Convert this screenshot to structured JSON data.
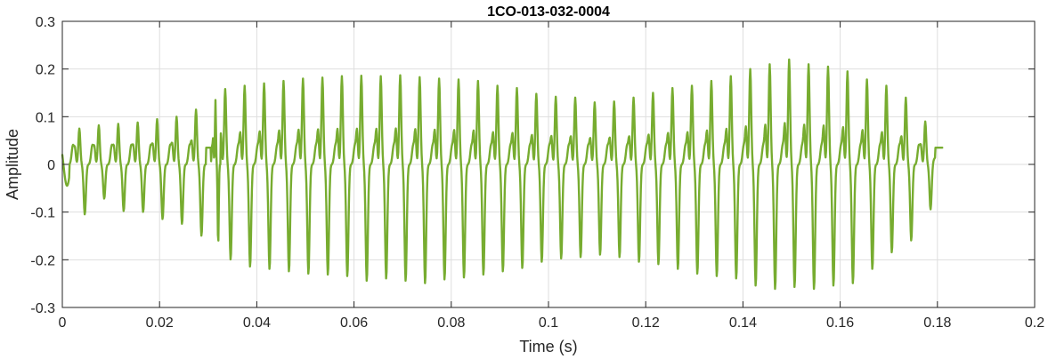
{
  "chart_data": {
    "type": "line",
    "title": "1CO-013-032-0004",
    "xlabel": "Time (s)",
    "ylabel": "Amplitude",
    "xlim": [
      0,
      0.2
    ],
    "ylim": [
      -0.3,
      0.3
    ],
    "grid": true,
    "x_ticks": [
      "0",
      "0.02",
      "0.04",
      "0.06",
      "0.08",
      "0.1",
      "0.12",
      "0.14",
      "0.16",
      "0.18",
      "0.2"
    ],
    "y_ticks": [
      "0.3",
      "0.2",
      "0.1",
      "0",
      "-0.1",
      "-0.2",
      "-0.3"
    ],
    "series": [
      {
        "color": "#77ac30",
        "x_range": [
          0,
          0.181
        ],
        "peaks": [
          [
            0.0035,
            0.075,
            -0.105
          ],
          [
            0.0075,
            0.082,
            -0.072
          ],
          [
            0.0115,
            0.085,
            -0.098
          ],
          [
            0.0155,
            0.088,
            -0.1
          ],
          [
            0.0195,
            0.095,
            -0.115
          ],
          [
            0.0235,
            0.1,
            -0.125
          ],
          [
            0.0275,
            0.115,
            -0.15
          ],
          [
            0.0315,
            0.135,
            -0.17
          ],
          [
            0.0335,
            0.158,
            -0.2
          ],
          [
            0.0375,
            0.165,
            -0.215
          ],
          [
            0.0415,
            0.17,
            -0.22
          ],
          [
            0.0455,
            0.175,
            -0.225
          ],
          [
            0.0495,
            0.18,
            -0.23
          ],
          [
            0.0535,
            0.182,
            -0.232
          ],
          [
            0.0575,
            0.185,
            -0.235
          ],
          [
            0.0615,
            0.186,
            -0.245
          ],
          [
            0.0655,
            0.185,
            -0.24
          ],
          [
            0.0695,
            0.187,
            -0.245
          ],
          [
            0.0735,
            0.183,
            -0.25
          ],
          [
            0.0775,
            0.18,
            -0.242
          ],
          [
            0.0815,
            0.178,
            -0.238
          ],
          [
            0.0855,
            0.175,
            -0.232
          ],
          [
            0.0895,
            0.165,
            -0.225
          ],
          [
            0.0935,
            0.16,
            -0.218
          ],
          [
            0.0975,
            0.148,
            -0.205
          ],
          [
            0.1015,
            0.142,
            -0.198
          ],
          [
            0.1055,
            0.14,
            -0.195
          ],
          [
            0.1095,
            0.13,
            -0.19
          ],
          [
            0.1135,
            0.132,
            -0.195
          ],
          [
            0.1175,
            0.14,
            -0.205
          ],
          [
            0.1215,
            0.15,
            -0.21
          ],
          [
            0.1255,
            0.16,
            -0.22
          ],
          [
            0.1295,
            0.165,
            -0.23
          ],
          [
            0.1335,
            0.175,
            -0.235
          ],
          [
            0.1375,
            0.185,
            -0.24
          ],
          [
            0.1415,
            0.2,
            -0.255
          ],
          [
            0.1455,
            0.21,
            -0.262
          ],
          [
            0.1495,
            0.22,
            -0.258
          ],
          [
            0.1535,
            0.21,
            -0.262
          ],
          [
            0.1575,
            0.205,
            -0.255
          ],
          [
            0.1615,
            0.195,
            -0.25
          ],
          [
            0.1655,
            0.178,
            -0.22
          ],
          [
            0.1695,
            0.165,
            -0.185
          ],
          [
            0.1735,
            0.14,
            -0.16
          ],
          [
            0.1775,
            0.09,
            -0.1
          ]
        ],
        "end_value": 0.035
      }
    ]
  }
}
